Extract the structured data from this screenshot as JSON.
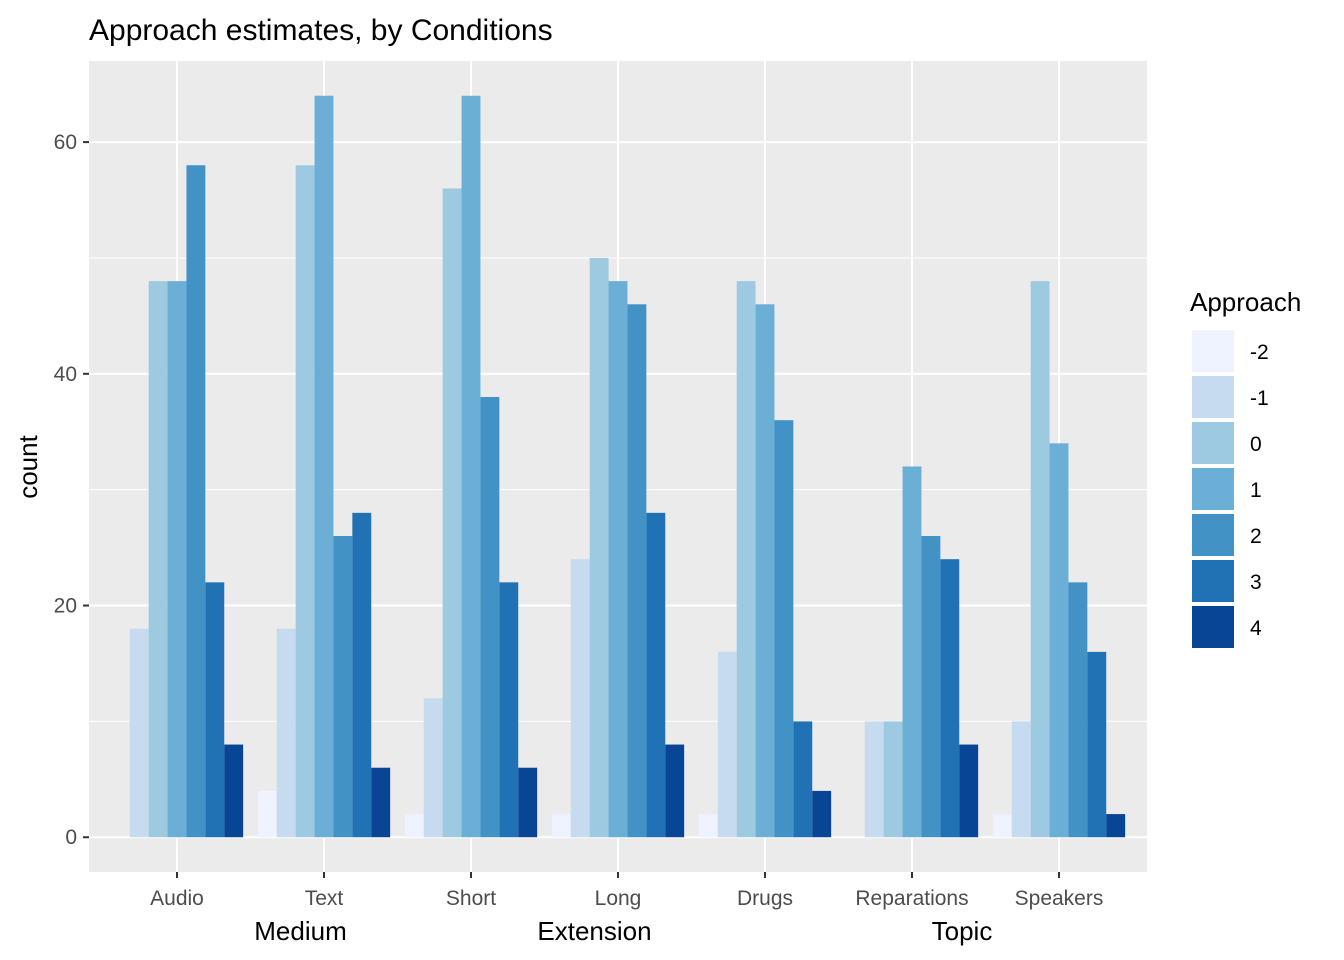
{
  "chart_data": {
    "type": "bar",
    "title": "Approach estimates, by Conditions",
    "ylabel": "count",
    "xlabel": "",
    "ylim": [
      -3,
      67
    ],
    "y_ticks": [
      0,
      20,
      40,
      60
    ],
    "grid": true,
    "legend": {
      "title": "Approach",
      "placement": "right"
    },
    "categories": [
      "Audio",
      "Text",
      "Short",
      "Long",
      "Drugs",
      "Reparations",
      "Speakers"
    ],
    "groups": [
      {
        "label": "Medium",
        "categories": [
          "Audio",
          "Text"
        ]
      },
      {
        "label": "Extension",
        "categories": [
          "Short",
          "Long"
        ]
      },
      {
        "label": "Topic",
        "categories": [
          "Drugs",
          "Reparations",
          "Speakers"
        ]
      }
    ],
    "series": [
      {
        "name": "-2",
        "color": "#eff3ff",
        "values": [
          0,
          4,
          2,
          2,
          2,
          0,
          2
        ]
      },
      {
        "name": "-1",
        "color": "#c6dbef",
        "values": [
          18,
          18,
          12,
          24,
          16,
          10,
          10
        ]
      },
      {
        "name": "0",
        "color": "#9ecae1",
        "values": [
          48,
          58,
          56,
          50,
          48,
          10,
          48
        ]
      },
      {
        "name": "1",
        "color": "#6baed6",
        "values": [
          48,
          64,
          64,
          48,
          46,
          32,
          34
        ]
      },
      {
        "name": "2",
        "color": "#4292c6",
        "values": [
          58,
          26,
          38,
          46,
          36,
          26,
          22
        ]
      },
      {
        "name": "3",
        "color": "#2171b5",
        "values": [
          22,
          28,
          22,
          28,
          10,
          24,
          16
        ]
      },
      {
        "name": "4",
        "color": "#084594",
        "values": [
          8,
          6,
          6,
          8,
          4,
          8,
          2
        ]
      }
    ]
  }
}
